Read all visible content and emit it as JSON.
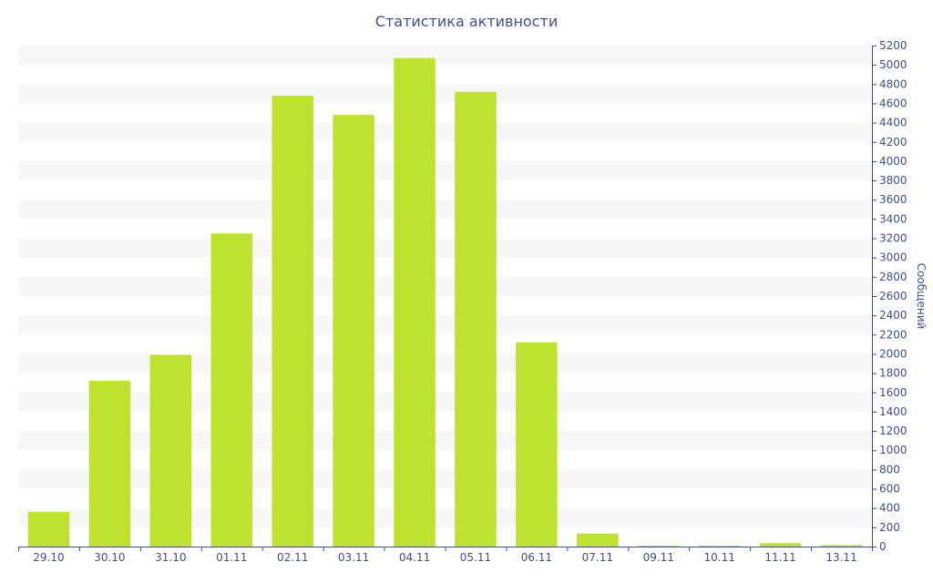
{
  "chart_data": {
    "type": "bar",
    "title": "Статистика активности",
    "xlabel": "",
    "ylabel": "Сообщений",
    "categories": [
      "29.10",
      "30.10",
      "31.10",
      "01.11",
      "02.11",
      "03.11",
      "04.11",
      "05.11",
      "06.11",
      "07.11",
      "09.11",
      "10.11",
      "11.11",
      "13.11"
    ],
    "values": [
      360,
      1720,
      1990,
      3250,
      4680,
      4480,
      5070,
      4720,
      2120,
      135,
      10,
      10,
      35,
      15
    ],
    "ylim": [
      0,
      5200
    ],
    "ytick_step": 200,
    "y_axis_side": "right",
    "grid": "alternating-bands",
    "legend": "none",
    "colors": {
      "bar": "#bde22f",
      "band": "#f7f7f7",
      "text": "#3e4f8a",
      "axis": "#3e4f8a"
    }
  }
}
